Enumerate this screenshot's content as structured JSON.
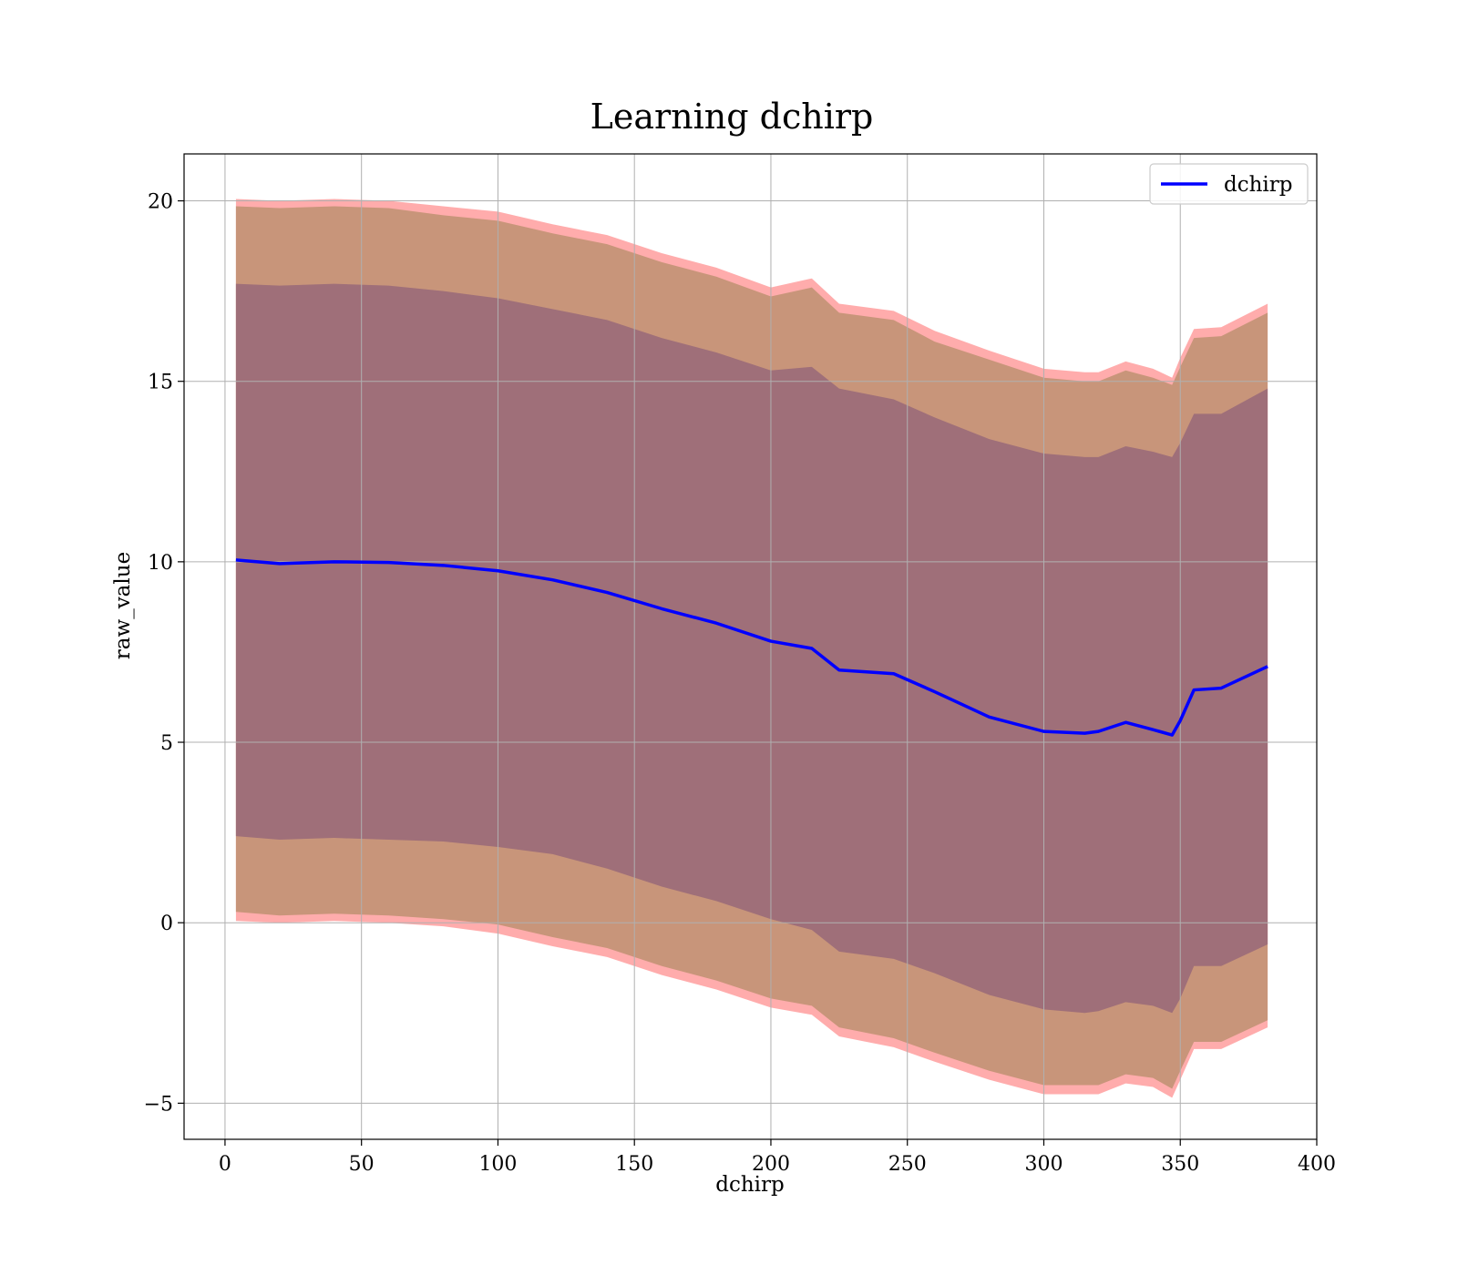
{
  "chart_data": {
    "type": "line",
    "title": "Learning dchirp",
    "xlabel": "dchirp",
    "ylabel": "raw_value",
    "xlim": [
      -15,
      400
    ],
    "ylim": [
      -6,
      21.3
    ],
    "grid": true,
    "legend_placement": "top-right",
    "x_ticks": [
      0,
      50,
      100,
      150,
      200,
      250,
      300,
      350,
      400
    ],
    "x_tick_labels": [
      "0",
      "50",
      "100",
      "150",
      "200",
      "250",
      "300",
      "350",
      "400"
    ],
    "y_ticks": [
      -5,
      0,
      5,
      10,
      15,
      20
    ],
    "y_tick_labels": [
      "−5",
      "0",
      "5",
      "10",
      "15",
      "20"
    ],
    "colors": {
      "line": "#0000ff",
      "outer_band": "#ff9090",
      "middle_band": "#c8957a",
      "inner_band": "#9f6f79",
      "grid": "#b0b0b0"
    },
    "series": [
      {
        "name": "dchirp",
        "x": [
          4,
          20,
          40,
          60,
          80,
          100,
          120,
          140,
          160,
          180,
          200,
          215,
          225,
          245,
          260,
          280,
          300,
          315,
          320,
          330,
          340,
          347,
          350,
          355,
          365,
          382
        ],
        "mean": [
          10.05,
          9.95,
          10.0,
          9.98,
          9.9,
          9.75,
          9.5,
          9.15,
          8.7,
          8.3,
          7.8,
          7.6,
          7.0,
          6.9,
          6.4,
          5.7,
          5.3,
          5.25,
          5.3,
          5.55,
          5.35,
          5.2,
          5.6,
          6.45,
          6.5,
          7.1
        ],
        "inner_upper": [
          17.7,
          17.65,
          17.7,
          17.65,
          17.5,
          17.3,
          17.0,
          16.7,
          16.2,
          15.8,
          15.3,
          15.4,
          14.8,
          14.5,
          14.0,
          13.4,
          13.0,
          12.9,
          12.9,
          13.2,
          13.05,
          12.9,
          13.3,
          14.1,
          14.1,
          14.8
        ],
        "inner_lower": [
          2.4,
          2.3,
          2.35,
          2.3,
          2.25,
          2.1,
          1.9,
          1.5,
          1.0,
          0.6,
          0.1,
          -0.2,
          -0.8,
          -1.0,
          -1.4,
          -2.0,
          -2.4,
          -2.5,
          -2.45,
          -2.2,
          -2.3,
          -2.5,
          -2.1,
          -1.2,
          -1.2,
          -0.6
        ],
        "middle_upper": [
          19.85,
          19.8,
          19.85,
          19.8,
          19.6,
          19.45,
          19.1,
          18.8,
          18.3,
          17.9,
          17.35,
          17.6,
          16.9,
          16.7,
          16.1,
          15.6,
          15.1,
          15.0,
          15.0,
          15.3,
          15.1,
          14.9,
          15.4,
          16.2,
          16.25,
          16.9
        ],
        "middle_lower": [
          0.3,
          0.2,
          0.25,
          0.2,
          0.1,
          -0.05,
          -0.4,
          -0.7,
          -1.2,
          -1.6,
          -2.1,
          -2.3,
          -2.9,
          -3.2,
          -3.6,
          -4.1,
          -4.5,
          -4.5,
          -4.5,
          -4.2,
          -4.3,
          -4.6,
          -4.1,
          -3.3,
          -3.3,
          -2.7
        ],
        "outer_upper": [
          20.05,
          20.0,
          20.05,
          20.0,
          19.85,
          19.7,
          19.35,
          19.05,
          18.55,
          18.15,
          17.6,
          17.85,
          17.15,
          16.95,
          16.4,
          15.85,
          15.35,
          15.25,
          15.25,
          15.55,
          15.35,
          15.1,
          15.65,
          16.45,
          16.5,
          17.15
        ],
        "outer_lower": [
          0.05,
          0.0,
          0.05,
          0.0,
          -0.1,
          -0.3,
          -0.65,
          -0.95,
          -1.45,
          -1.85,
          -2.35,
          -2.55,
          -3.15,
          -3.45,
          -3.85,
          -4.35,
          -4.75,
          -4.75,
          -4.75,
          -4.45,
          -4.55,
          -4.85,
          -4.35,
          -3.5,
          -3.5,
          -2.9
        ]
      }
    ]
  }
}
